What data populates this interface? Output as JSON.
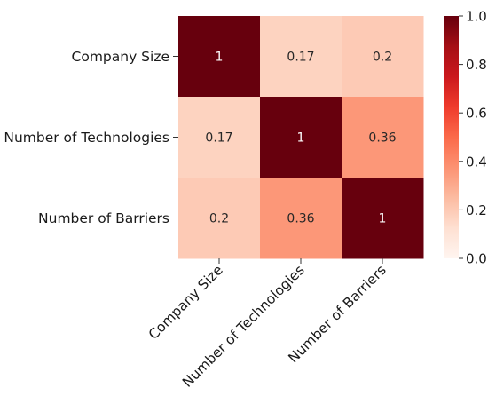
{
  "chart_data": {
    "type": "heatmap",
    "title": "",
    "xlabel": "",
    "ylabel": "",
    "x_categories": [
      "Company Size",
      "Number of Technologies",
      "Number of Barriers"
    ],
    "y_categories": [
      "Company Size",
      "Number of Technologies",
      "Number of Barriers"
    ],
    "values": [
      [
        1,
        0.17,
        0.2
      ],
      [
        0.17,
        1,
        0.36
      ],
      [
        0.2,
        0.36,
        1
      ]
    ],
    "cell_labels": [
      [
        "1",
        "0.17",
        "0.2"
      ],
      [
        "0.17",
        "1",
        "0.36"
      ],
      [
        "0.2",
        "0.36",
        "1"
      ]
    ],
    "colormap": "Reds",
    "colormap_stops": [
      "#fff5f0",
      "#fee0d2",
      "#fcbba1",
      "#fc9272",
      "#fb6a4a",
      "#ef3b2c",
      "#cb181d",
      "#a50f15",
      "#67000d"
    ],
    "colorbar": {
      "range": [
        0,
        1
      ],
      "ticks": [
        "0.0",
        "0.2",
        "0.4",
        "0.6",
        "0.8",
        "1.0"
      ]
    },
    "grid": false,
    "legend": "colorbar-right"
  }
}
